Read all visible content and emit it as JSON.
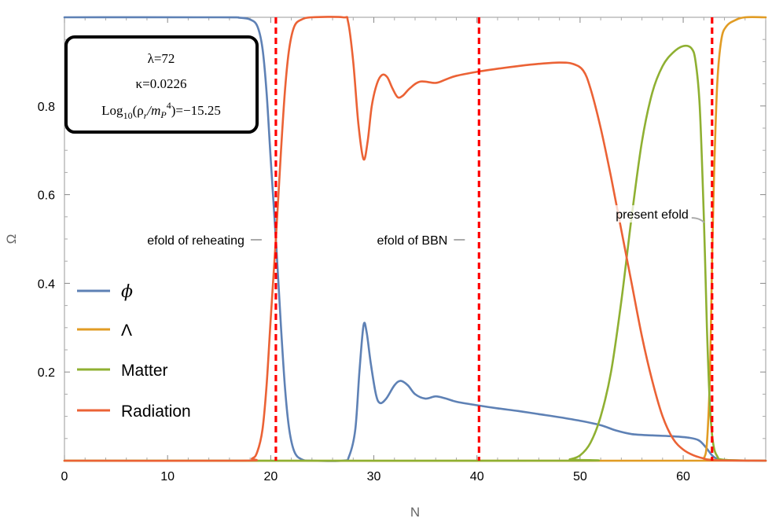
{
  "chart_data": {
    "type": "line",
    "title": "",
    "xlabel": "N",
    "ylabel": "Ω",
    "xlim": [
      0,
      68
    ],
    "ylim": [
      0,
      1
    ],
    "x_ticks": [
      0,
      10,
      20,
      30,
      40,
      50,
      60
    ],
    "x_tick_labels": [
      "0",
      "10",
      "20",
      "30",
      "40",
      "50",
      "60"
    ],
    "y_ticks": [
      0.2,
      0.4,
      0.6,
      0.8
    ],
    "y_tick_labels": [
      "0.2",
      "0.4",
      "0.6",
      "0.8"
    ],
    "grid": false,
    "legend_position": "left-middle",
    "series": [
      {
        "name": "ϕ",
        "color": "#5e81b5",
        "points": [
          [
            0,
            1.0
          ],
          [
            15,
            1.0
          ],
          [
            17,
            0.999
          ],
          [
            18,
            0.995
          ],
          [
            18.7,
            0.98
          ],
          [
            19.2,
            0.93
          ],
          [
            19.6,
            0.83
          ],
          [
            20,
            0.68
          ],
          [
            20.5,
            0.5
          ],
          [
            21,
            0.3
          ],
          [
            21.4,
            0.16
          ],
          [
            21.8,
            0.07
          ],
          [
            22.3,
            0.02
          ],
          [
            23,
            0.003
          ],
          [
            24,
            0.0
          ],
          [
            27,
            0.0
          ],
          [
            27.6,
            0.01
          ],
          [
            28.2,
            0.07
          ],
          [
            28.6,
            0.2
          ],
          [
            29,
            0.305
          ],
          [
            29.3,
            0.29
          ],
          [
            29.7,
            0.22
          ],
          [
            30.2,
            0.15
          ],
          [
            30.6,
            0.13
          ],
          [
            31.2,
            0.14
          ],
          [
            32,
            0.17
          ],
          [
            32.6,
            0.18
          ],
          [
            33.3,
            0.17
          ],
          [
            34,
            0.15
          ],
          [
            35,
            0.14
          ],
          [
            36,
            0.145
          ],
          [
            37,
            0.14
          ],
          [
            38,
            0.133
          ],
          [
            40,
            0.125
          ],
          [
            42,
            0.118
          ],
          [
            44,
            0.112
          ],
          [
            46,
            0.105
          ],
          [
            48,
            0.098
          ],
          [
            50,
            0.09
          ],
          [
            52,
            0.08
          ],
          [
            53.5,
            0.068
          ],
          [
            55,
            0.06
          ],
          [
            57,
            0.057
          ],
          [
            59,
            0.055
          ],
          [
            60.5,
            0.052
          ],
          [
            61.5,
            0.046
          ],
          [
            62.2,
            0.03
          ],
          [
            62.8,
            0.012
          ],
          [
            63.3,
            0.004
          ],
          [
            64,
            0.001
          ],
          [
            68,
            0.0
          ]
        ]
      },
      {
        "name": "Λ",
        "color": "#e19c24",
        "points": [
          [
            0,
            0.0
          ],
          [
            61.8,
            0.0
          ],
          [
            62,
            0.005
          ],
          [
            62.3,
            0.04
          ],
          [
            62.6,
            0.2
          ],
          [
            62.8,
            0.45
          ],
          [
            63,
            0.65
          ],
          [
            63.3,
            0.85
          ],
          [
            63.7,
            0.95
          ],
          [
            64.2,
            0.98
          ],
          [
            65,
            0.993
          ],
          [
            66,
            1.0
          ],
          [
            68,
            1.0
          ]
        ]
      },
      {
        "name": "Matter",
        "color": "#8fb032",
        "points": [
          [
            0,
            0.0
          ],
          [
            48,
            0.0
          ],
          [
            49,
            0.003
          ],
          [
            50,
            0.012
          ],
          [
            51,
            0.04
          ],
          [
            52,
            0.1
          ],
          [
            53,
            0.2
          ],
          [
            54,
            0.36
          ],
          [
            55,
            0.55
          ],
          [
            56,
            0.72
          ],
          [
            57,
            0.83
          ],
          [
            58,
            0.89
          ],
          [
            59,
            0.92
          ],
          [
            60,
            0.935
          ],
          [
            60.8,
            0.93
          ],
          [
            61.2,
            0.9
          ],
          [
            61.6,
            0.8
          ],
          [
            62,
            0.55
          ],
          [
            62.3,
            0.3
          ],
          [
            62.6,
            0.12
          ],
          [
            62.9,
            0.04
          ],
          [
            63.3,
            0.01
          ],
          [
            64,
            0.002
          ],
          [
            68,
            0.0
          ]
        ]
      },
      {
        "name": "Radiation",
        "color": "#eb6235",
        "points": [
          [
            0,
            0.0
          ],
          [
            17,
            0.0
          ],
          [
            18.2,
            0.005
          ],
          [
            18.7,
            0.02
          ],
          [
            19.2,
            0.07
          ],
          [
            19.6,
            0.17
          ],
          [
            20,
            0.32
          ],
          [
            20.5,
            0.5
          ],
          [
            21,
            0.7
          ],
          [
            21.4,
            0.84
          ],
          [
            21.8,
            0.93
          ],
          [
            22.3,
            0.98
          ],
          [
            23,
            0.995
          ],
          [
            24,
            1.0
          ],
          [
            27,
            1.0
          ],
          [
            27.5,
            0.99
          ],
          [
            28,
            0.9
          ],
          [
            28.5,
            0.76
          ],
          [
            29,
            0.68
          ],
          [
            29.4,
            0.72
          ],
          [
            29.8,
            0.8
          ],
          [
            30.3,
            0.85
          ],
          [
            30.8,
            0.87
          ],
          [
            31.3,
            0.865
          ],
          [
            31.8,
            0.84
          ],
          [
            32.3,
            0.82
          ],
          [
            32.8,
            0.823
          ],
          [
            33.5,
            0.84
          ],
          [
            34.5,
            0.855
          ],
          [
            36,
            0.852
          ],
          [
            37,
            0.86
          ],
          [
            38,
            0.868
          ],
          [
            40,
            0.877
          ],
          [
            42,
            0.884
          ],
          [
            44,
            0.89
          ],
          [
            46,
            0.895
          ],
          [
            48,
            0.898
          ],
          [
            49.3,
            0.895
          ],
          [
            50.3,
            0.88
          ],
          [
            51,
            0.84
          ],
          [
            52,
            0.75
          ],
          [
            53,
            0.64
          ],
          [
            54,
            0.52
          ],
          [
            55,
            0.4
          ],
          [
            56,
            0.28
          ],
          [
            57,
            0.18
          ],
          [
            58,
            0.1
          ],
          [
            59,
            0.05
          ],
          [
            60,
            0.025
          ],
          [
            61,
            0.012
          ],
          [
            62,
            0.005
          ],
          [
            63,
            0.001
          ],
          [
            68,
            0.0
          ]
        ]
      }
    ],
    "vertical_lines": [
      {
        "x": 20.5,
        "label": "efold of reheating",
        "label_y": 0.5
      },
      {
        "x": 40.2,
        "label": "efold of BBN",
        "label_y": 0.5
      },
      {
        "x": 62.8,
        "label": "present efold",
        "label_y": 0.53
      }
    ],
    "vline_color": "#ff0000",
    "parameter_box": {
      "lambda_line": "λ=72",
      "kappa_line": "κ=0.0226",
      "log_prefix": "Log",
      "log_sub": "10",
      "log_rho": "(ρ",
      "log_rho_sub": "r",
      "log_mp": "/m",
      "log_mp_sub": "P",
      "log_mp_sup": "4",
      "log_suffix": ")=−15.25"
    }
  }
}
